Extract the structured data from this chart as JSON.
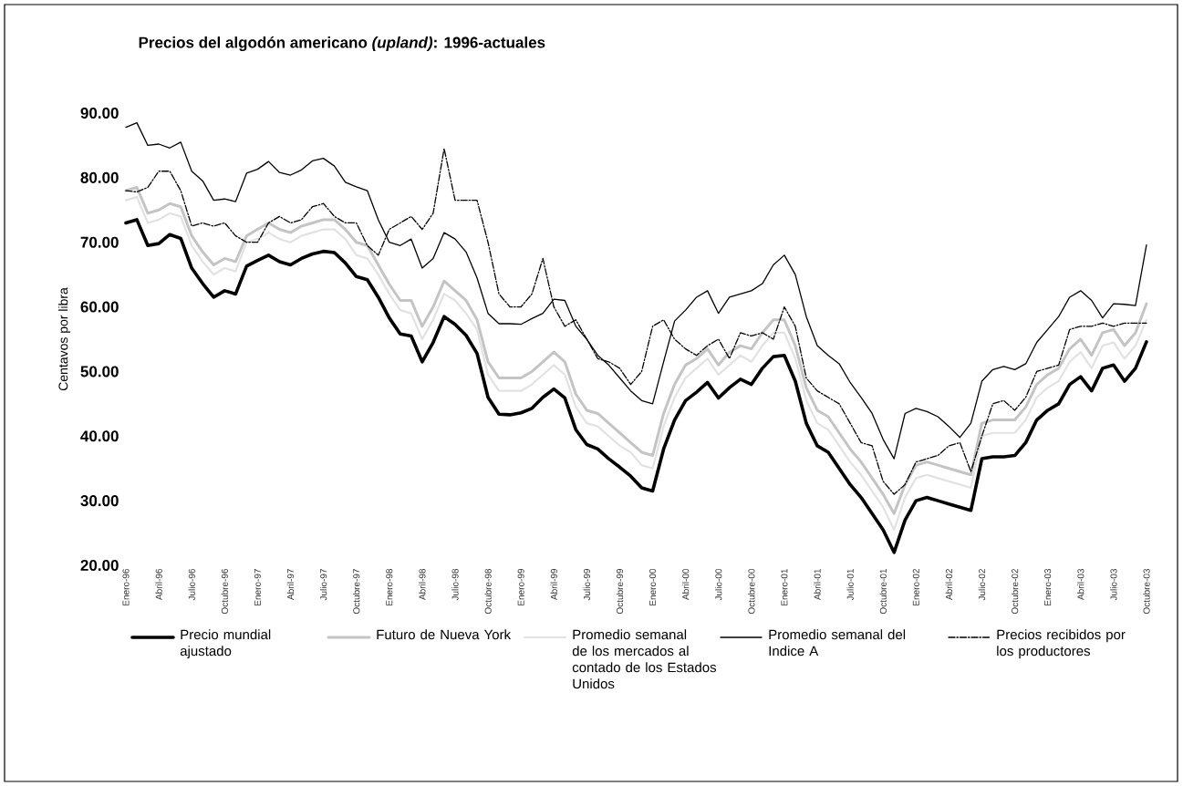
{
  "chart_data": {
    "type": "line",
    "title": "Precios del algodón americano *(upland)*: 1996-actuales",
    "ylabel": "Centavos por libra",
    "categories": [
      "Enero-96",
      null,
      null,
      "Abril-96",
      null,
      null,
      "Julio-96",
      null,
      null,
      "Octubre-96",
      null,
      null,
      "Enero-97",
      null,
      null,
      "Abril-97",
      null,
      null,
      "Julio-97",
      null,
      null,
      "Octubre-97",
      null,
      null,
      "Enero-98",
      null,
      null,
      "Abril-98",
      null,
      null,
      "Julio-98",
      null,
      null,
      "Octubre-98",
      null,
      null,
      "Enero-99",
      null,
      null,
      "Abril-99",
      null,
      null,
      "Julio-99",
      null,
      null,
      "Octubre-99",
      null,
      null,
      "Enero-00",
      null,
      null,
      "Abril-00",
      null,
      null,
      "Julio-00",
      null,
      null,
      "Octubre-00",
      null,
      null,
      "Enero-01",
      null,
      null,
      "Abril-01",
      null,
      null,
      "Julio-01",
      null,
      null,
      "Octubre-01",
      null,
      null,
      "Enero-02",
      null,
      null,
      "Abril-02",
      null,
      null,
      "Julio-02",
      null,
      null,
      "Octubre-02",
      null,
      null,
      "Enero-03",
      null,
      null,
      "Abril-03",
      null,
      null,
      "Julio-03",
      null,
      null,
      "Octubre-03"
    ],
    "series": [
      {
        "name": "Precio mundial ajustado",
        "color": "#000000",
        "values": [
          73,
          73.5,
          69.5,
          69.8,
          71.2,
          70.6,
          66,
          63.6,
          61.5,
          62.5,
          62,
          66.3,
          67.2,
          68,
          67,
          66.5,
          67.5,
          68.2,
          68.6,
          68.4,
          66.8,
          64.7,
          64.2,
          61.5,
          58.3,
          55.8,
          55.5,
          51.5,
          54.5,
          58.5,
          57.3,
          55.6,
          52.8,
          46,
          43.4,
          43.3,
          43.6,
          44.3,
          46,
          47.3,
          45.9,
          41,
          38.7,
          38,
          36.5,
          35.2,
          33.8,
          32,
          31.5,
          38,
          42.5,
          45.5,
          46.8,
          48.3,
          45.9,
          47.5,
          48.8,
          48,
          50.5,
          52.3,
          52.5,
          48.5,
          42,
          38.5,
          37.5,
          35,
          32.5,
          30.5,
          28,
          25.5,
          22,
          27,
          30,
          30.5,
          30,
          29.5,
          29,
          28.5,
          36.5,
          36.8,
          36.8,
          37,
          39,
          42.5,
          44,
          45,
          48,
          49.2,
          47,
          50.5,
          51,
          48.5,
          50.5,
          54.6
        ]
      },
      {
        "name": "Futuro de Nueva York",
        "color": "#c4c4c4",
        "values": [
          78,
          78.5,
          74.5,
          75,
          76,
          75.5,
          71,
          68.5,
          66.5,
          67.5,
          67,
          71,
          72,
          73,
          72,
          71.5,
          72.5,
          73,
          73.5,
          73.5,
          72,
          70,
          69.5,
          66.5,
          63.5,
          61,
          61,
          57,
          60,
          64,
          62.5,
          61,
          58,
          51.5,
          49,
          49,
          49,
          50,
          51.5,
          53,
          51.5,
          46.5,
          44,
          43.5,
          42,
          40.5,
          39,
          37.5,
          37,
          43.5,
          48,
          51,
          52,
          53.5,
          51,
          53,
          54,
          53.5,
          56,
          58,
          58,
          54,
          47.5,
          44,
          43,
          40.5,
          38,
          36,
          33.5,
          31,
          28,
          32.5,
          35.5,
          36,
          35.5,
          35,
          34.5,
          34,
          42,
          42.5,
          42.5,
          42.5,
          44.5,
          48,
          49.5,
          50.5,
          53.5,
          55,
          52.5,
          56,
          56.5,
          54,
          56,
          60.5
        ]
      },
      {
        "name": "Promedio semanal de los mercados al contado de los Estados Unidos",
        "color": "#e2e2e2",
        "values": [
          76.5,
          77,
          73,
          73.5,
          74.5,
          74,
          69.5,
          67,
          65,
          66,
          65.5,
          70,
          70.5,
          71.5,
          70.5,
          70,
          71,
          71.5,
          72,
          72,
          70.5,
          68,
          67.5,
          65,
          62,
          59.5,
          59,
          55,
          58,
          62,
          61,
          59,
          56.5,
          49.5,
          47,
          47,
          47,
          48,
          49.5,
          51,
          49.5,
          44.5,
          42,
          41.5,
          40,
          38.5,
          37.5,
          35.5,
          35,
          41.5,
          46,
          49,
          50.5,
          52,
          49.5,
          51,
          52.5,
          51.5,
          54,
          56,
          56,
          52,
          45.5,
          42,
          41,
          38.5,
          36,
          34,
          31.5,
          29,
          25.5,
          30.5,
          33.5,
          34,
          33.5,
          33,
          32.5,
          32,
          40,
          40.5,
          40.5,
          40.5,
          42.5,
          46,
          47.5,
          48.5,
          51.5,
          53,
          50.5,
          54,
          54.5,
          52,
          54,
          58
        ]
      },
      {
        "name": "Promedio semanal del Indice A",
        "color": "#000000",
        "values": [
          87.8,
          88.5,
          85,
          85.2,
          84.6,
          85.5,
          81,
          79.5,
          76.5,
          76.7,
          76.3,
          80.7,
          81.3,
          82.5,
          80.8,
          80.4,
          81.2,
          82.6,
          83,
          81.8,
          79.3,
          78.6,
          78,
          73.5,
          70,
          69.5,
          70.5,
          66,
          67.5,
          71.5,
          70.5,
          68.5,
          64.5,
          59,
          57.4,
          57.4,
          57.3,
          58.2,
          59,
          61.2,
          61,
          57,
          55,
          52.5,
          51,
          49,
          47,
          45.5,
          45,
          51.5,
          57.8,
          59.5,
          61.5,
          62.5,
          59,
          61.5,
          62,
          62.5,
          63.6,
          66.5,
          68,
          65,
          58.5,
          54,
          52.5,
          51.2,
          48.3,
          46,
          43.5,
          39.5,
          36.5,
          43.5,
          44.3,
          43.8,
          43,
          41.5,
          39.8,
          42,
          48.5,
          50.3,
          50.8,
          50.3,
          51.2,
          54.5,
          56.5,
          58.5,
          61.5,
          62.5,
          61,
          58.3,
          60.5,
          60.4,
          60.2,
          69.6
        ]
      },
      {
        "name": "Precios recibidos por los productores",
        "color": "#000000",
        "line_style": "dashed",
        "values": [
          78,
          77.8,
          78.5,
          81,
          81,
          78,
          72.5,
          73,
          72.5,
          73,
          71,
          70,
          70,
          73,
          74,
          73,
          73.5,
          75.5,
          76,
          74,
          73,
          73,
          69.5,
          68,
          72,
          73,
          74,
          72,
          74.5,
          84.5,
          76.5,
          76.5,
          76.5,
          70,
          62,
          60,
          60,
          62,
          67.5,
          60,
          57,
          58,
          55,
          52,
          51.5,
          50.5,
          48,
          50,
          57,
          58,
          55,
          53.5,
          52.5,
          54,
          55,
          52,
          56,
          55.5,
          56,
          55,
          60,
          57,
          49,
          47,
          46,
          45,
          42,
          39,
          38.5,
          33,
          31,
          32.5,
          36,
          36.5,
          37,
          38.5,
          39,
          34.5,
          40,
          45,
          45.5,
          44,
          46,
          50,
          50.5,
          51,
          56.5,
          57,
          57,
          57.5,
          57,
          57.5,
          57.5,
          57.5
        ]
      }
    ],
    "ylim": [
      20,
      90
    ],
    "yticks": [
      {
        "value": 20,
        "label": "20.00"
      },
      {
        "value": 30,
        "label": "30.00"
      },
      {
        "value": 40,
        "label": "40.00"
      },
      {
        "value": 50,
        "label": "50.00"
      },
      {
        "value": 60,
        "label": "60.00"
      },
      {
        "value": 70,
        "label": "70.00"
      },
      {
        "value": 80,
        "label": "80.00"
      },
      {
        "value": 90,
        "label": "90.00"
      }
    ],
    "grid": false,
    "legend": "bottom",
    "marker": "none",
    "line_style": "solid"
  }
}
